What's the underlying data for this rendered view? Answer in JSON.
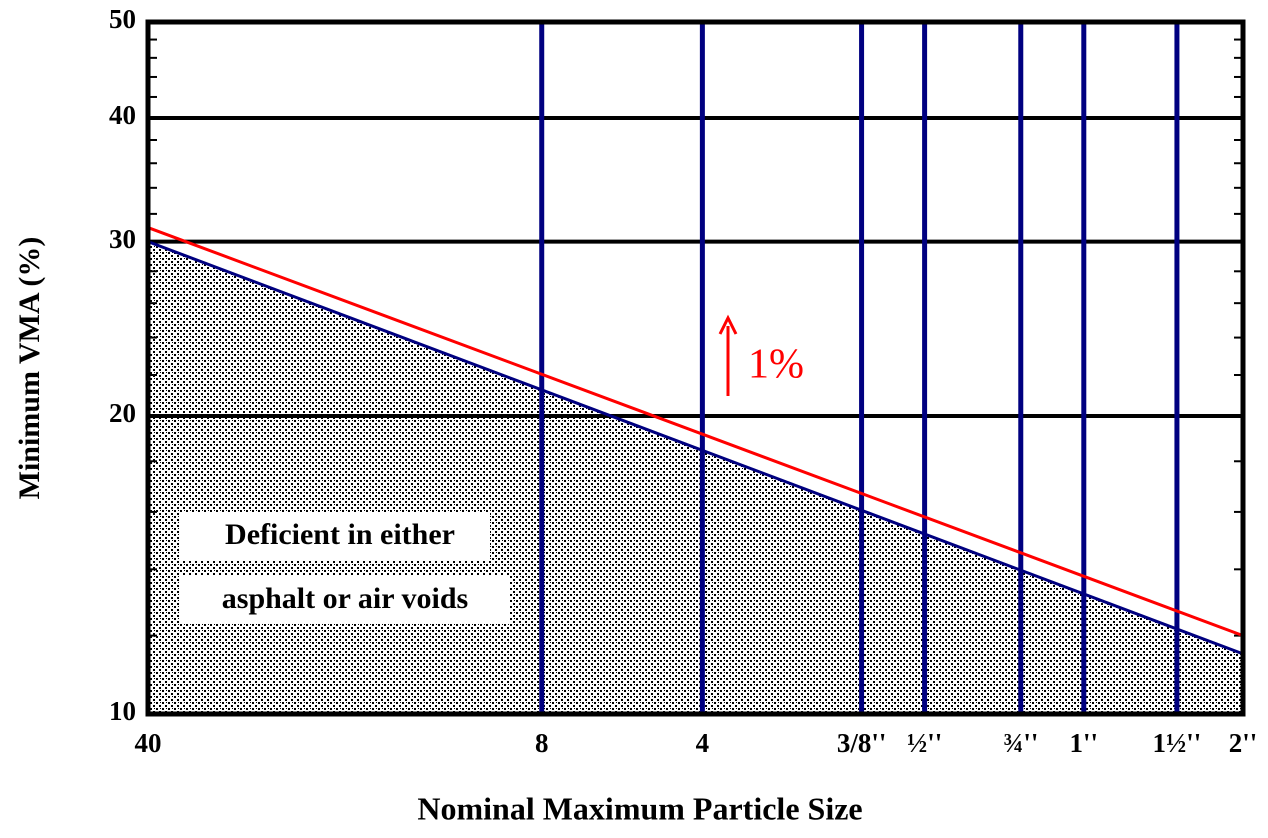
{
  "chart_data": {
    "type": "line",
    "x_label": "Nominal Maximum Particle Size",
    "y_label": "Minimum VMA (%)",
    "x": [
      0.425,
      50
    ],
    "series": [
      {
        "color": "#000080",
        "values": [
          30,
          11.5
        ],
        "fill_below": true
      },
      {
        "color": "#ff0000",
        "values": [
          31,
          12
        ]
      }
    ],
    "xlim": [
      0.425,
      50
    ],
    "xticks": [
      {
        "value": 0.425,
        "label": "40"
      },
      {
        "value": 2.36,
        "label": "8"
      },
      {
        "value": 4.75,
        "label": "4"
      },
      {
        "value": 9.5,
        "label": "3/8''"
      },
      {
        "value": 12.5,
        "label": "½''"
      },
      {
        "value": 19,
        "label": "¾''"
      },
      {
        "value": 25,
        "label": "1''"
      },
      {
        "value": 37.5,
        "label": "1½''"
      },
      {
        "value": 50,
        "label": "2''"
      }
    ],
    "xscale": "log",
    "ylim": [
      10,
      50
    ],
    "yticks": [
      10,
      20,
      30,
      40,
      50
    ],
    "minor_yticks": [
      12,
      14,
      16,
      18,
      22,
      24,
      26,
      28,
      32,
      34,
      36,
      38,
      42,
      44,
      46,
      48
    ],
    "yscale": "log",
    "grid": true,
    "annotations": [
      "1%",
      "Deficient in either",
      "asphalt or air voids"
    ]
  }
}
